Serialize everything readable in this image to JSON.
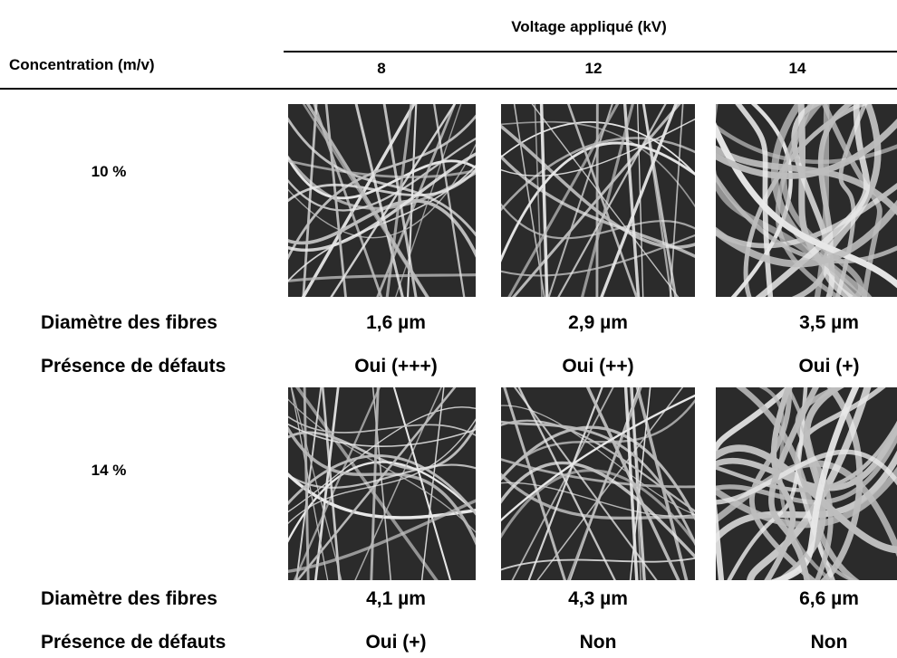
{
  "header": {
    "group_title": "Voltage appliqué (kV)",
    "row_title": "Concentration (m/v)",
    "columns": [
      "8",
      "12",
      "14"
    ]
  },
  "rows": [
    {
      "concentration": "10 %",
      "diameter_label": "Diamètre des fibres",
      "diameters": [
        "1,6 µm",
        "2,9 µm",
        "3,5 µm"
      ],
      "defects_label": "Présence de défauts",
      "defects": [
        "Oui (+++)",
        "Oui (++)",
        "Oui (+)"
      ]
    },
    {
      "concentration": "14 %",
      "diameter_label": "Diamètre des fibres",
      "diameters": [
        "4,1 µm",
        "4,3 µm",
        "6,6 µm"
      ],
      "defects_label": "Présence de défauts",
      "defects": [
        "Oui (+)",
        "Non",
        "Non"
      ]
    }
  ]
}
